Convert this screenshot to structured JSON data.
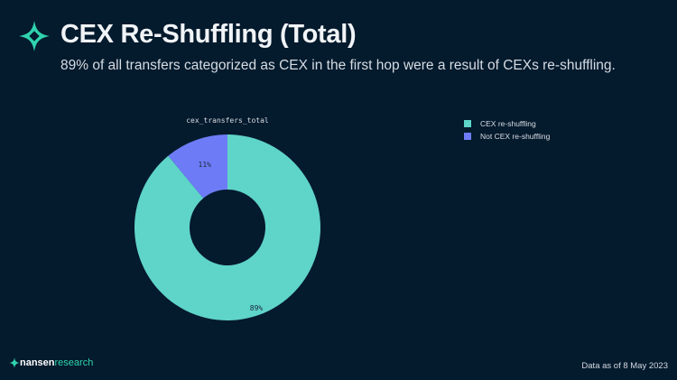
{
  "header": {
    "title": "CEX Re-Shuffling (Total)",
    "subtitle": "89% of all transfers categorized as CEX in the first hop were a result of CEXs re-shuffling."
  },
  "chart_data": {
    "type": "pie",
    "title": "cex_transfers_total",
    "donut": true,
    "slices": [
      {
        "label": "CEX re-shuffling",
        "value": 89,
        "display": "89%",
        "color": "#5fd4c9"
      },
      {
        "label": "Not CEX re-shuffling",
        "value": 11,
        "display": "11%",
        "color": "#6d7cf6"
      }
    ],
    "legend_position": "right"
  },
  "footer": {
    "brand_main": "nansen",
    "brand_sub": "research",
    "date": "Data as of 8 May 2023"
  }
}
